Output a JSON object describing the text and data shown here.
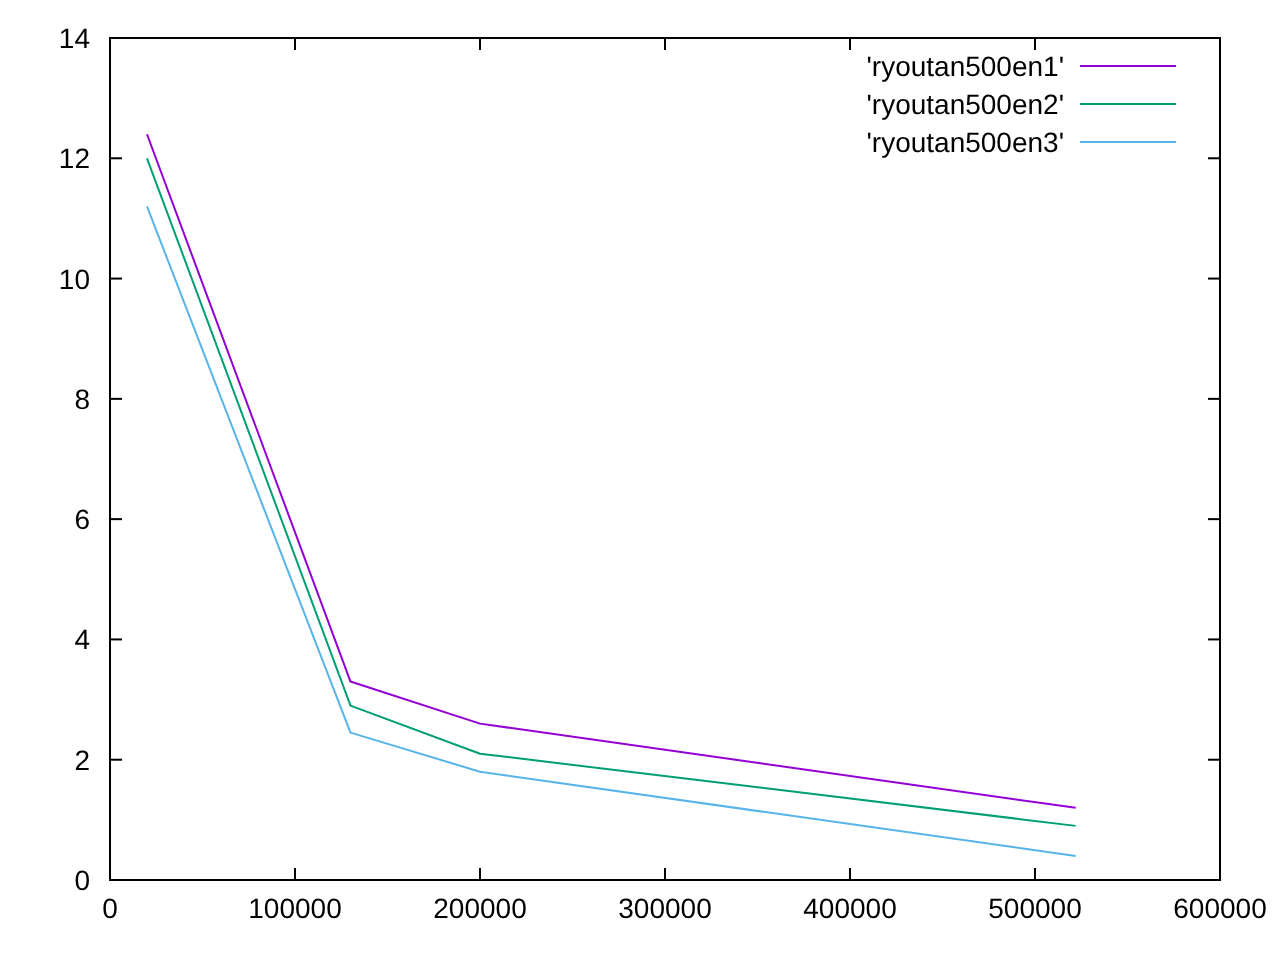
{
  "chart_data": {
    "type": "line",
    "x": [
      20000,
      130000,
      200000,
      522000
    ],
    "series": [
      {
        "name": "'ryoutan500en1'",
        "color": "#9400d3",
        "values": [
          12.4,
          3.3,
          2.6,
          1.2
        ]
      },
      {
        "name": "'ryoutan500en2'",
        "color": "#009e73",
        "values": [
          12.0,
          2.9,
          2.1,
          0.9
        ]
      },
      {
        "name": "'ryoutan500en3'",
        "color": "#56b4e9",
        "values": [
          11.2,
          2.45,
          1.8,
          0.4
        ]
      }
    ],
    "xlim": [
      0,
      600000
    ],
    "xticks": [
      0,
      100000,
      200000,
      300000,
      400000,
      500000,
      600000
    ],
    "ylim": [
      0,
      14
    ],
    "yticks": [
      0,
      2,
      4,
      6,
      8,
      10,
      12,
      14
    ],
    "legend": "top right",
    "grid": false,
    "marker": "none",
    "line_style": "solid"
  }
}
